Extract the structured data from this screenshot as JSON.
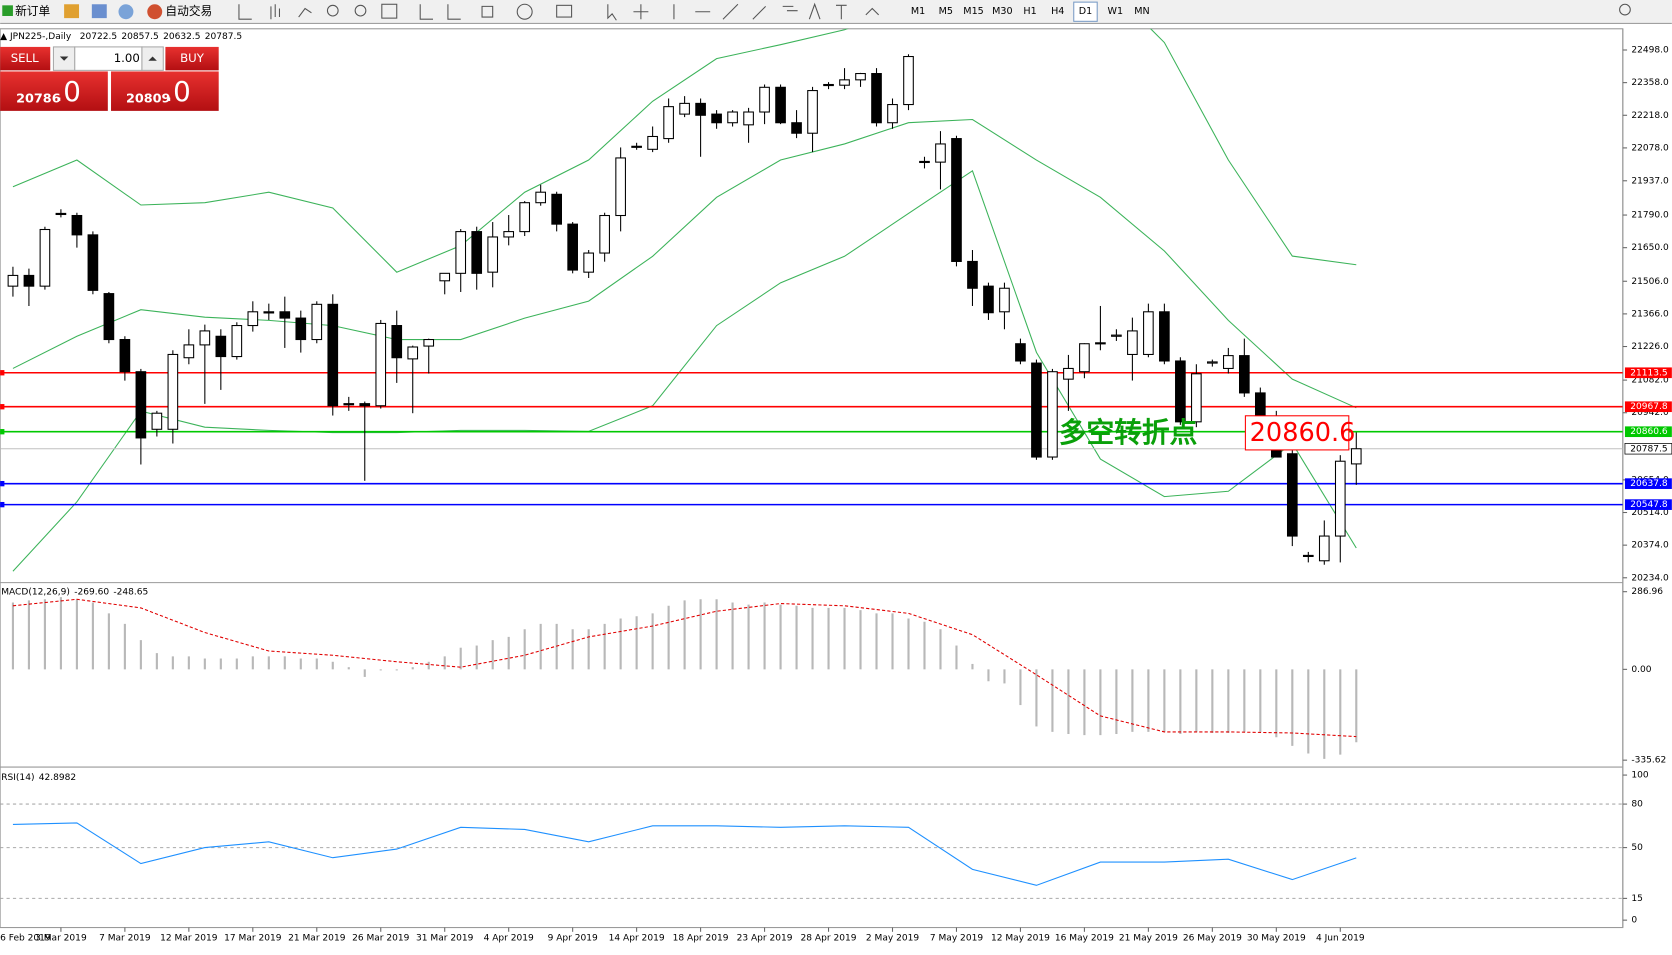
{
  "toolbar": {
    "new_order": "新订单",
    "auto_trading": "自动交易",
    "timeframes": [
      "M1",
      "M5",
      "M15",
      "M30",
      "H1",
      "H4",
      "D1",
      "W1",
      "MN"
    ],
    "active_timeframe": 6
  },
  "trade_panel": {
    "sell": "SELL",
    "buy": "BUY",
    "lots": "1.00",
    "sell_price": "20786",
    "sell_frac": ".0",
    "buy_price": "20809",
    "buy_frac": ".0"
  },
  "chart": {
    "symbol": "JPN225-,Daily",
    "candles": [
      [
        21485,
        21568,
        21440,
        21531
      ],
      [
        21531,
        21560,
        21400,
        21485
      ],
      [
        21485,
        21740,
        21470,
        21728
      ],
      [
        21797,
        21815,
        21780,
        21797
      ],
      [
        21788,
        21800,
        21650,
        21705
      ],
      [
        21705,
        21720,
        21450,
        21467
      ],
      [
        21453,
        21460,
        21240,
        21256
      ],
      [
        21256,
        21270,
        21080,
        21118
      ],
      [
        21118,
        21130,
        20720,
        20834
      ],
      [
        20871,
        20950,
        20840,
        20940
      ],
      [
        20871,
        21210,
        20810,
        21192
      ],
      [
        21178,
        21300,
        21150,
        21233
      ],
      [
        21233,
        21320,
        20980,
        21293
      ],
      [
        21270,
        21300,
        21040,
        21183
      ],
      [
        21183,
        21330,
        21170,
        21316
      ],
      [
        21316,
        21420,
        21290,
        21375
      ],
      [
        21375,
        21410,
        21340,
        21370
      ],
      [
        21375,
        21440,
        21220,
        21348
      ],
      [
        21348,
        21380,
        21200,
        21256
      ],
      [
        21256,
        21420,
        21240,
        21407
      ],
      [
        21407,
        21450,
        20930,
        20972
      ],
      [
        20981,
        21010,
        20950,
        20976
      ],
      [
        20981,
        20990,
        20650,
        20972
      ],
      [
        20972,
        21340,
        20960,
        21325
      ],
      [
        21316,
        21380,
        21070,
        21178
      ],
      [
        21173,
        21230,
        20940,
        21224
      ],
      [
        21228,
        21260,
        21110,
        21256
      ],
      [
        21508,
        21540,
        21450,
        21540
      ],
      [
        21540,
        21730,
        21460,
        21719
      ],
      [
        21719,
        21740,
        21470,
        21540
      ],
      [
        21545,
        21760,
        21480,
        21696
      ],
      [
        21696,
        21790,
        21660,
        21719
      ],
      [
        21719,
        21850,
        21700,
        21843
      ],
      [
        21843,
        21920,
        21830,
        21888
      ],
      [
        21879,
        21890,
        21720,
        21751
      ],
      [
        21751,
        21760,
        21540,
        21554
      ],
      [
        21545,
        21640,
        21520,
        21627
      ],
      [
        21627,
        21800,
        21590,
        21788
      ],
      [
        21788,
        22080,
        21720,
        22035
      ],
      [
        22081,
        22100,
        22070,
        22085
      ],
      [
        22072,
        22170,
        22060,
        22127
      ],
      [
        22118,
        22290,
        22100,
        22255
      ],
      [
        22223,
        22300,
        22210,
        22269
      ],
      [
        22269,
        22290,
        22040,
        22218
      ],
      [
        22223,
        22240,
        22160,
        22186
      ],
      [
        22186,
        22240,
        22170,
        22232
      ],
      [
        22177,
        22250,
        22100,
        22232
      ],
      [
        22232,
        22350,
        22180,
        22338
      ],
      [
        22338,
        22350,
        22180,
        22186
      ],
      [
        22186,
        22240,
        22120,
        22141
      ],
      [
        22141,
        22340,
        22060,
        22324
      ],
      [
        22347,
        22360,
        22330,
        22350
      ],
      [
        22347,
        22420,
        22330,
        22370
      ],
      [
        22370,
        22400,
        22340,
        22397
      ],
      [
        22397,
        22420,
        22170,
        22186
      ],
      [
        22186,
        22290,
        22160,
        22264
      ],
      [
        22264,
        22480,
        22240,
        22470
      ],
      [
        22017,
        22040,
        21990,
        22020
      ],
      [
        22017,
        22150,
        21900,
        22095
      ],
      [
        22118,
        22130,
        21570,
        21591
      ],
      [
        21591,
        21640,
        21400,
        21476
      ],
      [
        21485,
        21500,
        21340,
        21371
      ],
      [
        21375,
        21500,
        21300,
        21476
      ],
      [
        21238,
        21260,
        21150,
        21164
      ],
      [
        21155,
        21170,
        20740,
        20752
      ],
      [
        20752,
        21130,
        20740,
        21118
      ],
      [
        21086,
        21190,
        20950,
        21132
      ],
      [
        21118,
        21240,
        21090,
        21238
      ],
      [
        21238,
        21400,
        21210,
        21242
      ],
      [
        21270,
        21300,
        21250,
        21275
      ],
      [
        21192,
        21350,
        21080,
        21293
      ],
      [
        21192,
        21410,
        21180,
        21375
      ],
      [
        21375,
        21410,
        21150,
        21164
      ],
      [
        21164,
        21180,
        20890,
        20903
      ],
      [
        20903,
        21150,
        20880,
        21109
      ],
      [
        21155,
        21170,
        21140,
        21160
      ],
      [
        21132,
        21220,
        21110,
        21187
      ],
      [
        21187,
        21260,
        21010,
        21027
      ],
      [
        21027,
        21050,
        20850,
        20871
      ],
      [
        20871,
        20950,
        20750,
        20752
      ],
      [
        20766,
        20780,
        20370,
        20413
      ],
      [
        20330,
        20345,
        20300,
        20326
      ],
      [
        20307,
        20480,
        20290,
        20413
      ],
      [
        20413,
        20760,
        20300,
        20734
      ],
      [
        20722.5,
        20857.5,
        20632.5,
        20787.5
      ]
    ],
    "ylim": [
      20220,
      22589
    ],
    "yticks": [
      {
        "value": 22498,
        "label": "22498.0"
      },
      {
        "value": 22358,
        "label": "22358.0"
      },
      {
        "value": 22218,
        "label": "22218.0"
      },
      {
        "value": 22078,
        "label": "22078.0"
      },
      {
        "value": 21937,
        "label": "21937.0"
      },
      {
        "value": 21790,
        "label": "21790.0"
      },
      {
        "value": 21650,
        "label": "21650.0"
      },
      {
        "value": 21506,
        "label": "21506.0"
      },
      {
        "value": 21366,
        "label": "21366.0"
      },
      {
        "value": 21226,
        "label": "21226.0"
      },
      {
        "value": 21082,
        "label": "21082.0"
      },
      {
        "value": 20942,
        "label": "20942.0"
      },
      {
        "value": 20654,
        "label": "20654.0"
      },
      {
        "value": 20514,
        "label": "20514.0"
      },
      {
        "value": 20374,
        "label": "20374.0"
      },
      {
        "value": 20234,
        "label": "20234.0"
      }
    ],
    "levels": [
      {
        "value": 21113.5,
        "color": "#ff0000"
      },
      {
        "value": 20967.8,
        "color": "#ff0000"
      },
      {
        "value": 20860.6,
        "color": "#00c800"
      },
      {
        "value": 20637.8,
        "color": "#0000ff"
      },
      {
        "value": 20547.8,
        "color": "#0000ff"
      }
    ],
    "annotation": "多空转折点",
    "price_box": "20860.6",
    "bollinger": {
      "color": "#3cb35a",
      "x": [
        0,
        4,
        8,
        12,
        16,
        20,
        24,
        28,
        32,
        36,
        40,
        44,
        48,
        52,
        56,
        60,
        64,
        68,
        72,
        76,
        80,
        84
      ],
      "upper": [
        21911,
        22026,
        21833,
        21843,
        21888,
        21820,
        21545,
        21659,
        21888,
        22026,
        22278,
        22461,
        22521,
        22585,
        22690,
        22805,
        22896,
        22805,
        22530,
        22026,
        21614,
        21577
      ],
      "middle": [
        21132,
        21270,
        21384,
        21352,
        21338,
        21316,
        21256,
        21256,
        21348,
        21421,
        21613,
        21866,
        22026,
        22095,
        22186,
        22200,
        22026,
        21866,
        21636,
        21338,
        21086,
        20963
      ],
      "lower": [
        20262,
        20560,
        20949,
        20880,
        20866,
        20857,
        20857,
        20866,
        20866,
        20862,
        20972,
        21316,
        21499,
        21613,
        21797,
        21980,
        21201,
        20743,
        20582,
        20605,
        20811,
        20362
      ]
    },
    "dates": [
      "6 Feb 2019",
      "3 Mar 2019",
      "7 Mar 2019",
      "12 Mar 2019",
      "17 Mar 2019",
      "21 Mar 2019",
      "26 Mar 2019",
      "31 Mar 2019",
      "4 Apr 2019",
      "9 Apr 2019",
      "14 Apr 2019",
      "18 Apr 2019",
      "23 Apr 2019",
      "28 Apr 2019",
      "2 May 2019",
      "7 May 2019",
      "12 May 2019",
      "16 May 2019",
      "21 May 2019",
      "26 May 2019",
      "30 May 2019",
      "4 Jun 2019"
    ]
  },
  "macd": {
    "title": "MACD(12,26,9)",
    "value_labels": [
      "-269.60",
      "-248.65"
    ],
    "histogram": [
      247,
      255,
      259,
      267,
      259,
      247,
      207,
      168,
      108,
      60,
      48,
      48,
      40,
      40,
      40,
      48,
      48,
      48,
      40,
      40,
      28,
      8,
      -28,
      -4,
      -4,
      8,
      28,
      48,
      80,
      88,
      108,
      120,
      148,
      168,
      168,
      148,
      148,
      168,
      188,
      196,
      207,
      235,
      255,
      259,
      259,
      247,
      239,
      247,
      239,
      235,
      227,
      227,
      227,
      219,
      207,
      207,
      188,
      176,
      148,
      88,
      20,
      -44,
      -52,
      -132,
      -211,
      -231,
      -239,
      -243,
      -243,
      -239,
      -231,
      -231,
      -231,
      -239,
      -231,
      -235,
      -235,
      -231,
      -231,
      -251,
      -283,
      -311,
      -331,
      -315,
      -269.6
    ],
    "signal": {
      "x": [
        0,
        4,
        8,
        12,
        16,
        20,
        24,
        28,
        32,
        36,
        40,
        44,
        48,
        52,
        56,
        60,
        64,
        68,
        72,
        76,
        80,
        84
      ],
      "values": [
        235,
        259,
        227,
        136,
        68,
        52,
        28,
        8,
        52,
        120,
        160,
        215,
        243,
        235,
        207,
        128,
        -20,
        -172,
        -231,
        -231,
        -235,
        -248.65
      ]
    },
    "ylim": [
      -355.3,
      314.5
    ],
    "yticks": [
      286.96,
      {
        "value": 0,
        "label": "0.00"
      },
      -335.62
    ]
  },
  "rsi": {
    "title": "RSI(14)",
    "color": "#1e90ff",
    "x": [
      0,
      4,
      8,
      12,
      16,
      20,
      24,
      28,
      32,
      36,
      40,
      44,
      48,
      52,
      56,
      60,
      64,
      68,
      72,
      76,
      80,
      84
    ],
    "values": [
      66,
      67,
      39,
      50,
      54,
      43,
      49,
      64,
      62.5,
      54,
      65,
      65,
      64,
      65,
      64,
      35,
      24,
      40,
      40,
      42,
      28,
      42.8982
    ],
    "ylim": [
      -5.1,
      104.4
    ],
    "yticks": [
      100,
      80,
      50,
      15,
      0
    ]
  }
}
